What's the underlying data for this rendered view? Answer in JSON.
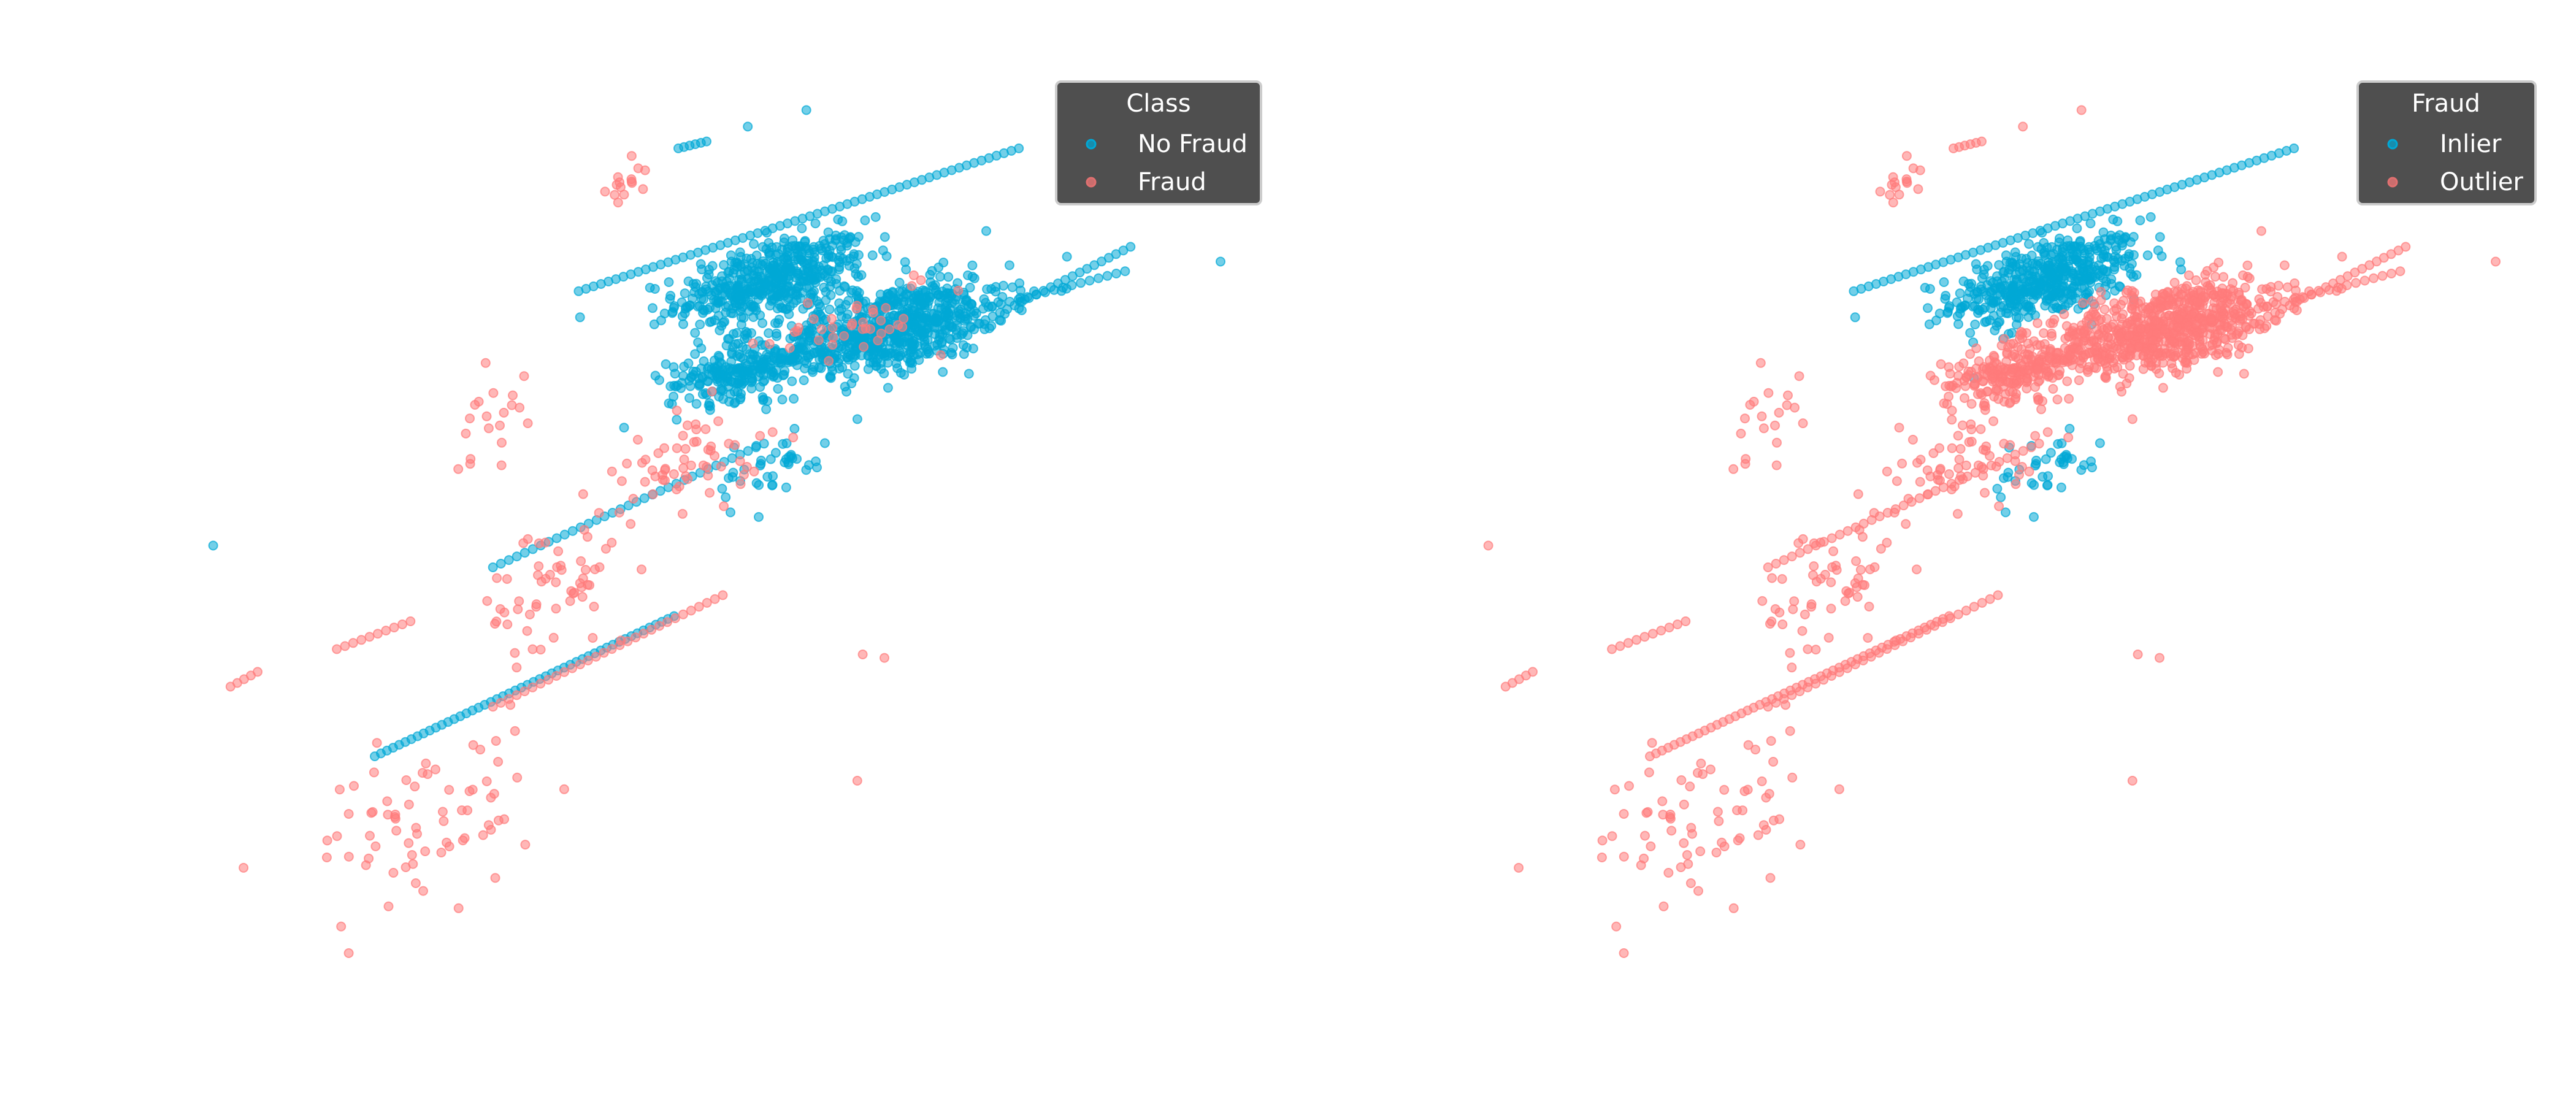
{
  "chart_data": [
    {
      "type": "scatter",
      "title": "",
      "xlabel": "",
      "ylabel": "",
      "axes_visible": false,
      "grid": false,
      "xlim": [
        0,
        100
      ],
      "ylim": [
        0,
        100
      ],
      "legend": {
        "title": "Class",
        "placement": "top-right",
        "entries": [
          "No Fraud",
          "Fraud"
        ]
      },
      "colors": {
        "No Fraud": "#00a8d6",
        "Fraud": "#ff7b7b"
      },
      "label_field": "cls"
    },
    {
      "type": "scatter",
      "title": "",
      "xlabel": "",
      "ylabel": "",
      "axes_visible": false,
      "grid": false,
      "xlim": [
        0,
        100
      ],
      "ylim": [
        0,
        100
      ],
      "legend": {
        "title": "Fraud",
        "placement": "top-right",
        "entries": [
          "Inlier",
          "Outlier"
        ]
      },
      "colors": {
        "Inlier": "#00a8d6",
        "Outlier": "#ff7b7b"
      },
      "label_field": "det"
    }
  ],
  "point_groups": {
    "lines": [
      {
        "from": [
          38.2,
          77.9
        ],
        "to": [
          78.8,
          94.3
        ],
        "n": 60,
        "cls": "No Fraud",
        "det": "Inlier"
      },
      {
        "from": [
          48.5,
          67.0
        ],
        "to": [
          88.6,
          80.2
        ],
        "n": 50,
        "cls": "No Fraud",
        "det": "Outlier"
      },
      {
        "from": [
          69.7,
          70.8
        ],
        "to": [
          89.1,
          83.0
        ],
        "n": 30,
        "cls": "No Fraud",
        "det": "Outlier"
      },
      {
        "from": [
          30.3,
          46.2
        ],
        "to": [
          55.3,
          60.4
        ],
        "n": 35,
        "cls": "No Fraud",
        "det": "Outlier"
      },
      {
        "from": [
          19.4,
          24.5
        ],
        "to": [
          47.0,
          40.6
        ],
        "n": 50,
        "cls": "No Fraud",
        "det": "Outlier"
      },
      {
        "from": [
          30.3,
          30.2
        ],
        "to": [
          51.5,
          43.0
        ],
        "n": 30,
        "cls": "Fraud",
        "det": "Outlier"
      },
      {
        "from": [
          15.9,
          36.8
        ],
        "to": [
          22.7,
          40.0
        ],
        "n": 10,
        "cls": "Fraud",
        "det": "Outlier"
      },
      {
        "from": [
          6.1,
          32.5
        ],
        "to": [
          8.6,
          34.2
        ],
        "n": 5,
        "cls": "Fraud",
        "det": "Outlier"
      },
      {
        "from": [
          47.4,
          94.3
        ],
        "to": [
          50.0,
          95.1
        ],
        "n": 6,
        "cls": "No Fraud",
        "det": "Outlier"
      }
    ],
    "clusters": [
      {
        "center": [
          56.1,
          79.2
        ],
        "spread": [
          8,
          4
        ],
        "n": 500,
        "cls": "No Fraud",
        "det": "Inlier"
      },
      {
        "center": [
          66.7,
          73.6
        ],
        "spread": [
          10,
          4.5
        ],
        "n": 700,
        "cls": "No Fraud",
        "det": "Outlier"
      },
      {
        "center": [
          53.0,
          68.9
        ],
        "spread": [
          6,
          3
        ],
        "n": 200,
        "cls": "No Fraud",
        "det": "Outlier"
      },
      {
        "center": [
          56.0,
          57.5
        ],
        "spread": [
          5,
          4
        ],
        "n": 40,
        "cls": "No Fraud",
        "det": "Inlier"
      },
      {
        "center": [
          63.6,
          74.5
        ],
        "spread": [
          7,
          4
        ],
        "n": 40,
        "cls": "Fraud",
        "det": "Outlier"
      },
      {
        "center": [
          48.5,
          58.5
        ],
        "spread": [
          6,
          5
        ],
        "n": 60,
        "cls": "Fraud",
        "det": "Outlier"
      },
      {
        "center": [
          36.4,
          43.4
        ],
        "spread": [
          7,
          8
        ],
        "n": 60,
        "cls": "Fraud",
        "det": "Outlier"
      },
      {
        "center": [
          24.2,
          17.0
        ],
        "spread": [
          9,
          8
        ],
        "n": 70,
        "cls": "Fraud",
        "det": "Outlier"
      },
      {
        "center": [
          30.0,
          64.0
        ],
        "spread": [
          3,
          6
        ],
        "n": 20,
        "cls": "Fraud",
        "det": "Outlier"
      },
      {
        "center": [
          42.4,
          90.6
        ],
        "spread": [
          2,
          2
        ],
        "n": 15,
        "cls": "Fraud",
        "det": "Outlier"
      }
    ],
    "points": [
      {
        "x": 4.5,
        "y": 48.7,
        "cls": "No Fraud",
        "det": "Outlier"
      },
      {
        "x": 97.4,
        "y": 81.3,
        "cls": "No Fraud",
        "det": "Outlier"
      },
      {
        "x": 59.2,
        "y": 98.7,
        "cls": "No Fraud",
        "det": "Outlier"
      },
      {
        "x": 53.8,
        "y": 96.8,
        "cls": "No Fraud",
        "det": "Outlier"
      },
      {
        "x": 64.4,
        "y": 36.2,
        "cls": "Fraud",
        "det": "Outlier"
      },
      {
        "x": 66.4,
        "y": 35.8,
        "cls": "Fraud",
        "det": "Outlier"
      },
      {
        "x": 63.9,
        "y": 21.7,
        "cls": "Fraud",
        "det": "Outlier"
      },
      {
        "x": 17.0,
        "y": 1.9,
        "cls": "Fraud",
        "det": "Outlier"
      },
      {
        "x": 7.3,
        "y": 11.7,
        "cls": "Fraud",
        "det": "Outlier"
      }
    ]
  }
}
